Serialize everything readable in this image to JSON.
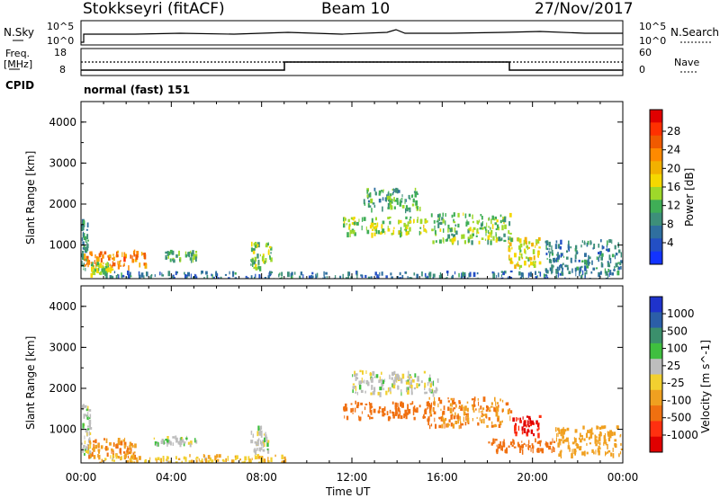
{
  "header": {
    "station": "Stokkseyri (fitACF)",
    "beam": "Beam 10",
    "date": "27/Nov/2017"
  },
  "top_panels": {
    "nsky_label": "N.Sky",
    "nsky_ticks": [
      "10^5",
      "10^0"
    ],
    "nsearch_label": "N.Search",
    "nsearch_ticks": [
      "10^5",
      "10^0"
    ],
    "freq_label_1": "Freq.",
    "freq_label_2": "[MHz]",
    "freq_ticks": [
      "18",
      "8"
    ],
    "nave_label": "Nave",
    "nave_ticks": [
      "60",
      "0"
    ],
    "cpid_label": "CPID",
    "cpid_text": "normal (fast) 151"
  },
  "colorbars": {
    "power": {
      "label": "Power [dB]",
      "ticks": [
        "28",
        "24",
        "20",
        "16",
        "12",
        "8",
        "4"
      ],
      "colors": [
        "#e00000",
        "#ff3000",
        "#f05a00",
        "#ff8a00",
        "#f2b100",
        "#f5d800",
        "#9ed82a",
        "#3fae56",
        "#3d8f7a",
        "#2f6f9f",
        "#234fc4",
        "#1233ff"
      ]
    },
    "velocity": {
      "label": "Velocity [m s^-1]",
      "ticks": [
        "1000",
        "500",
        "100",
        "25",
        "-25",
        "-100",
        "-500",
        "-1000"
      ],
      "colors": [
        "#1f33cc",
        "#2b5ea8",
        "#3b8f6c",
        "#3fbf3f",
        "#bdbdbd",
        "#f2d030",
        "#f0a020",
        "#f07010",
        "#ff3010",
        "#e00000"
      ]
    }
  },
  "chart_data": [
    {
      "type": "heatmap",
      "title": "",
      "ylabel": "Slant Range [km]",
      "ylim": [
        180,
        4500
      ],
      "y_ticks": [
        "4000",
        "3000",
        "2000",
        "1000"
      ],
      "x_ticks": [
        "00:00",
        "04:00",
        "08:00",
        "12:00",
        "16:00",
        "20:00",
        "00:00"
      ],
      "quantity": "Power [dB]",
      "blobs": [
        {
          "t": [
            0.0,
            0.3
          ],
          "r": [
            400,
            1650
          ],
          "v": 8
        },
        {
          "t": [
            0.1,
            2.9
          ],
          "r": [
            500,
            900
          ],
          "v": 22
        },
        {
          "t": [
            0.4,
            1.4
          ],
          "r": [
            300,
            600
          ],
          "v": 14
        },
        {
          "t": [
            3.7,
            5.1
          ],
          "r": [
            650,
            900
          ],
          "v": 11
        },
        {
          "t": [
            7.5,
            8.4
          ],
          "r": [
            450,
            1100
          ],
          "v": 12
        },
        {
          "t": [
            11.6,
            15.4
          ],
          "r": [
            1300,
            1700
          ],
          "v": 14
        },
        {
          "t": [
            12.5,
            15.0
          ],
          "r": [
            1900,
            2400
          ],
          "v": 10
        },
        {
          "t": [
            15.5,
            19.0
          ],
          "r": [
            1100,
            1800
          ],
          "v": 12
        },
        {
          "t": [
            18.9,
            20.3
          ],
          "r": [
            500,
            1200
          ],
          "v": 16
        },
        {
          "t": [
            20.5,
            24.0
          ],
          "r": [
            350,
            1150
          ],
          "v": 7
        },
        {
          "t": [
            1.0,
            23.5
          ],
          "r": [
            180,
            380
          ],
          "v": 6
        }
      ]
    },
    {
      "type": "heatmap",
      "title": "",
      "ylabel": "Slant Range [km]",
      "ylim": [
        180,
        4500
      ],
      "y_ticks": [
        "4000",
        "3000",
        "2000",
        "1000"
      ],
      "x_ticks": [
        "00:00",
        "04:00",
        "08:00",
        "12:00",
        "16:00",
        "20:00",
        "00:00"
      ],
      "xlabel": "Time UT",
      "quantity": "Velocity [m s^-1]",
      "blobs": [
        {
          "t": [
            0.0,
            0.4
          ],
          "r": [
            400,
            1650
          ],
          "v": 0
        },
        {
          "t": [
            0.3,
            2.4
          ],
          "r": [
            350,
            800
          ],
          "v": -150
        },
        {
          "t": [
            3.2,
            5.1
          ],
          "r": [
            650,
            850
          ],
          "v": 0
        },
        {
          "t": [
            7.5,
            8.3
          ],
          "r": [
            500,
            1100
          ],
          "v": 0
        },
        {
          "t": [
            11.6,
            15.6
          ],
          "r": [
            1300,
            1700
          ],
          "v": -200
        },
        {
          "t": [
            12.0,
            15.8
          ],
          "r": [
            1900,
            2450
          ],
          "v": 0
        },
        {
          "t": [
            15.3,
            19.0
          ],
          "r": [
            1100,
            1800
          ],
          "v": -150
        },
        {
          "t": [
            19.1,
            20.3
          ],
          "r": [
            900,
            1350
          ],
          "v": -700
        },
        {
          "t": [
            18.0,
            21.0
          ],
          "r": [
            500,
            800
          ],
          "v": -250
        },
        {
          "t": [
            21.0,
            24.0
          ],
          "r": [
            400,
            1100
          ],
          "v": -100
        },
        {
          "t": [
            0.5,
            9.0
          ],
          "r": [
            180,
            400
          ],
          "v": -60
        }
      ]
    }
  ]
}
